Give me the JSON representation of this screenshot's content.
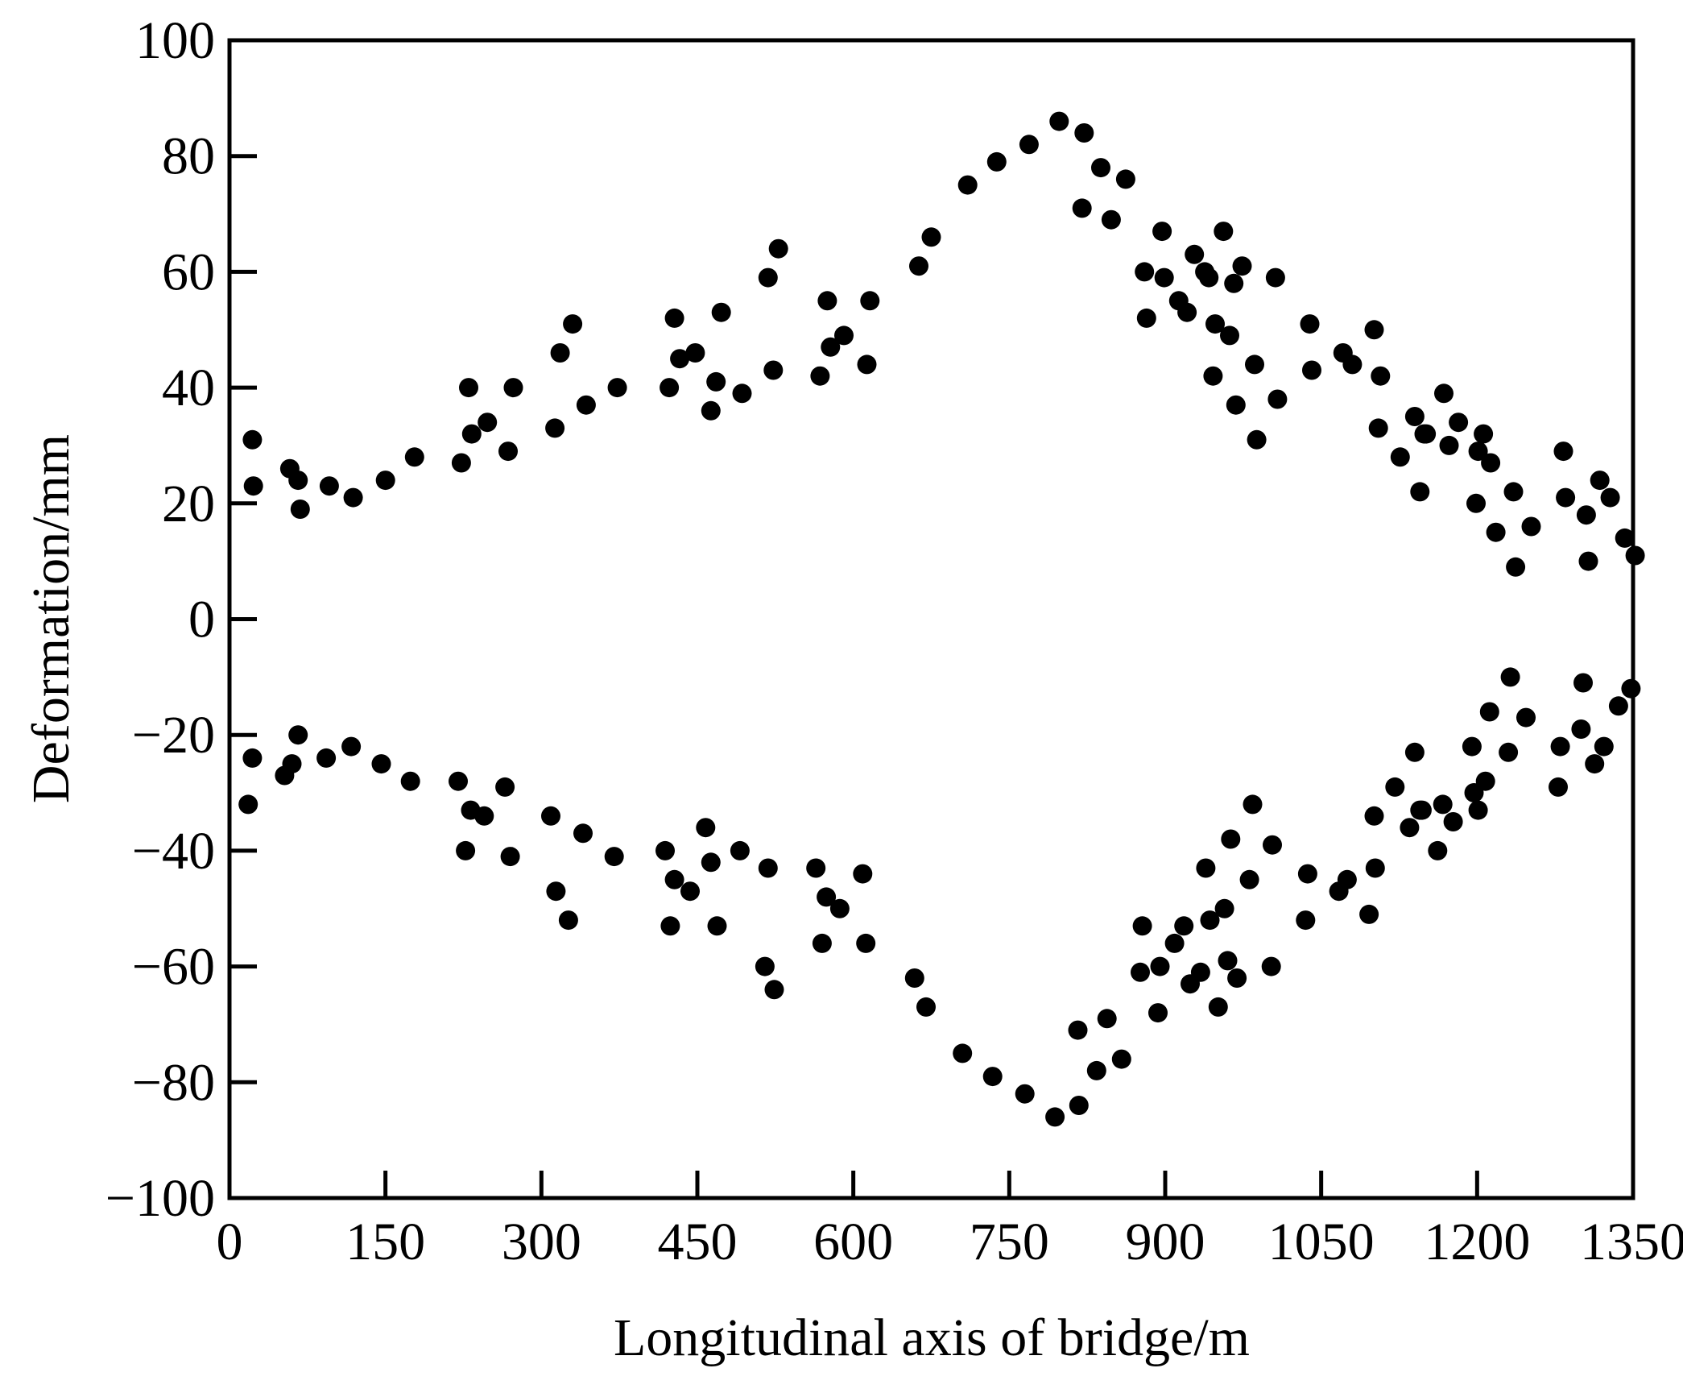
{
  "chart_data": {
    "type": "scatter",
    "title": "",
    "xlabel": "Longitudinal axis of bridge/m",
    "ylabel": "Deformation/mm",
    "xlim": [
      0,
      1350
    ],
    "ylim": [
      -100,
      100
    ],
    "xticks": [
      "0",
      "150",
      "300",
      "450",
      "600",
      "750",
      "900",
      "1050",
      "1200",
      "1350"
    ],
    "yticks": [
      "100",
      "80",
      "60",
      "40",
      "20",
      "0",
      "−20",
      "−40",
      "−60",
      "−80",
      "−100"
    ],
    "grid": false,
    "legend": "none",
    "marker_color": "#000000",
    "series": [
      {
        "points": [
          [
            22,
            31
          ],
          [
            23,
            23
          ],
          [
            58,
            26
          ],
          [
            66,
            24
          ],
          [
            68,
            19
          ],
          [
            96,
            23
          ],
          [
            119,
            21
          ],
          [
            150,
            24
          ],
          [
            178,
            28
          ],
          [
            223,
            27
          ],
          [
            230,
            40
          ],
          [
            233,
            32
          ],
          [
            248,
            34
          ],
          [
            268,
            29
          ],
          [
            273,
            40
          ],
          [
            313,
            33
          ],
          [
            318,
            46
          ],
          [
            330,
            51
          ],
          [
            343,
            37
          ],
          [
            373,
            40
          ],
          [
            423,
            40
          ],
          [
            428,
            52
          ],
          [
            433,
            45
          ],
          [
            448,
            46
          ],
          [
            463,
            36
          ],
          [
            468,
            41
          ],
          [
            473,
            53
          ],
          [
            493,
            39
          ],
          [
            518,
            59
          ],
          [
            523,
            43
          ],
          [
            528,
            64
          ],
          [
            568,
            42
          ],
          [
            575,
            55
          ],
          [
            578,
            47
          ],
          [
            591,
            49
          ],
          [
            613,
            44
          ],
          [
            616,
            55
          ],
          [
            663,
            61
          ],
          [
            675,
            66
          ],
          [
            710,
            75
          ],
          [
            738,
            79
          ],
          [
            769,
            82
          ],
          [
            798,
            86
          ],
          [
            820,
            71
          ],
          [
            822,
            84
          ],
          [
            838,
            78
          ],
          [
            848,
            69
          ],
          [
            862,
            76
          ],
          [
            880,
            60
          ],
          [
            882,
            52
          ],
          [
            897,
            67
          ],
          [
            899,
            59
          ],
          [
            913,
            55
          ],
          [
            921,
            53
          ],
          [
            928,
            63
          ],
          [
            938,
            60
          ],
          [
            942,
            59
          ],
          [
            946,
            42
          ],
          [
            948,
            51
          ],
          [
            956,
            67
          ],
          [
            962,
            49
          ],
          [
            966,
            58
          ],
          [
            968,
            37
          ],
          [
            974,
            61
          ],
          [
            986,
            44
          ],
          [
            988,
            31
          ],
          [
            1006,
            59
          ],
          [
            1008,
            38
          ],
          [
            1039,
            51
          ],
          [
            1041,
            43
          ],
          [
            1071,
            46
          ],
          [
            1080,
            44
          ],
          [
            1101,
            50
          ],
          [
            1105,
            33
          ],
          [
            1107,
            42
          ],
          [
            1126,
            28
          ],
          [
            1140,
            35
          ],
          [
            1145,
            22
          ],
          [
            1149,
            32
          ],
          [
            1151,
            32
          ],
          [
            1168,
            39
          ],
          [
            1173,
            30
          ],
          [
            1182,
            34
          ],
          [
            1199,
            20
          ],
          [
            1201,
            29
          ],
          [
            1206,
            32
          ],
          [
            1213,
            27
          ],
          [
            1218,
            15
          ],
          [
            1235,
            22
          ],
          [
            1237,
            9
          ],
          [
            1252,
            16
          ],
          [
            1283,
            29
          ],
          [
            1285,
            21
          ],
          [
            1305,
            18
          ],
          [
            1307,
            10
          ],
          [
            1318,
            24
          ],
          [
            1328,
            21
          ],
          [
            1342,
            14
          ],
          [
            1352,
            11
          ]
        ]
      },
      {
        "points": [
          [
            18,
            -32
          ],
          [
            22,
            -24
          ],
          [
            53,
            -27
          ],
          [
            60,
            -25
          ],
          [
            66,
            -20
          ],
          [
            93,
            -24
          ],
          [
            117,
            -22
          ],
          [
            146,
            -25
          ],
          [
            174,
            -28
          ],
          [
            220,
            -28
          ],
          [
            227,
            -40
          ],
          [
            232,
            -33
          ],
          [
            245,
            -34
          ],
          [
            265,
            -29
          ],
          [
            270,
            -41
          ],
          [
            309,
            -34
          ],
          [
            314,
            -47
          ],
          [
            326,
            -52
          ],
          [
            340,
            -37
          ],
          [
            370,
            -41
          ],
          [
            419,
            -40
          ],
          [
            424,
            -53
          ],
          [
            428,
            -45
          ],
          [
            443,
            -47
          ],
          [
            458,
            -36
          ],
          [
            463,
            -42
          ],
          [
            469,
            -53
          ],
          [
            491,
            -40
          ],
          [
            515,
            -60
          ],
          [
            518,
            -43
          ],
          [
            524,
            -64
          ],
          [
            564,
            -43
          ],
          [
            570,
            -56
          ],
          [
            574,
            -48
          ],
          [
            587,
            -50
          ],
          [
            609,
            -44
          ],
          [
            612,
            -56
          ],
          [
            659,
            -62
          ],
          [
            670,
            -67
          ],
          [
            705,
            -75
          ],
          [
            734,
            -79
          ],
          [
            765,
            -82
          ],
          [
            794,
            -86
          ],
          [
            816,
            -71
          ],
          [
            817,
            -84
          ],
          [
            834,
            -78
          ],
          [
            844,
            -69
          ],
          [
            858,
            -76
          ],
          [
            876,
            -61
          ],
          [
            878,
            -53
          ],
          [
            893,
            -68
          ],
          [
            895,
            -60
          ],
          [
            909,
            -56
          ],
          [
            918,
            -53
          ],
          [
            924,
            -63
          ],
          [
            934,
            -61
          ],
          [
            939,
            -43
          ],
          [
            943,
            -52
          ],
          [
            951,
            -67
          ],
          [
            957,
            -50
          ],
          [
            960,
            -59
          ],
          [
            963,
            -38
          ],
          [
            969,
            -62
          ],
          [
            981,
            -45
          ],
          [
            984,
            -32
          ],
          [
            1002,
            -60
          ],
          [
            1003,
            -39
          ],
          [
            1035,
            -52
          ],
          [
            1037,
            -44
          ],
          [
            1067,
            -47
          ],
          [
            1075,
            -45
          ],
          [
            1096,
            -51
          ],
          [
            1101,
            -34
          ],
          [
            1102,
            -43
          ],
          [
            1121,
            -29
          ],
          [
            1135,
            -36
          ],
          [
            1140,
            -23
          ],
          [
            1145,
            -33
          ],
          [
            1147,
            -33
          ],
          [
            1162,
            -40
          ],
          [
            1167,
            -32
          ],
          [
            1177,
            -35
          ],
          [
            1195,
            -22
          ],
          [
            1197,
            -30
          ],
          [
            1201,
            -33
          ],
          [
            1208,
            -28
          ],
          [
            1212,
            -16
          ],
          [
            1230,
            -23
          ],
          [
            1232,
            -10
          ],
          [
            1247,
            -17
          ],
          [
            1278,
            -29
          ],
          [
            1280,
            -22
          ],
          [
            1300,
            -19
          ],
          [
            1302,
            -11
          ],
          [
            1313,
            -25
          ],
          [
            1322,
            -22
          ],
          [
            1336,
            -15
          ],
          [
            1348,
            -12
          ]
        ]
      }
    ]
  }
}
